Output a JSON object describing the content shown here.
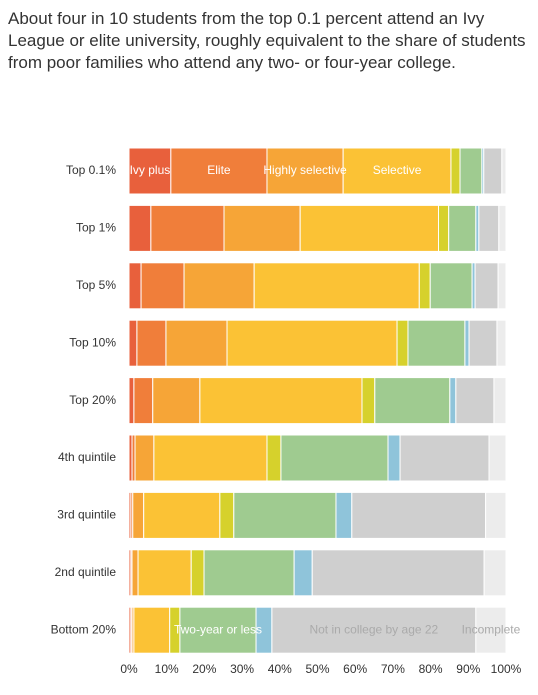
{
  "chart_data": {
    "type": "stacked_bar_horizontal",
    "title": "About four in 10 students from the top 0.1 percent attend an Ivy League or elite university, roughly equivalent to the share of students from poor families who attend any two- or four-year college.",
    "categories": [
      "Top 0.1%",
      "Top 1%",
      "Top 5%",
      "Top 10%",
      "Top 20%",
      "4th quintile",
      "3rd quintile",
      "2nd quintile",
      "Bottom 20%"
    ],
    "series": [
      {
        "name": "Ivy plus",
        "color": "#e8603c",
        "values": [
          11.1,
          5.8,
          3.2,
          2.1,
          1.3,
          0.8,
          0.5,
          0.5,
          0.5
        ]
      },
      {
        "name": "Elite",
        "color": "#f07e3a",
        "values": [
          25.5,
          19.4,
          11.4,
          7.7,
          5.0,
          0.8,
          0.5,
          0.3,
          0.3
        ]
      },
      {
        "name": "Highly selective",
        "color": "#f6a537",
        "values": [
          20.2,
          20.2,
          18.6,
          16.2,
          12.5,
          5.0,
          2.9,
          1.6,
          0.5
        ]
      },
      {
        "name": "Selective",
        "color": "#fbc235",
        "values": [
          28.6,
          36.7,
          43.8,
          45.1,
          43.0,
          30.0,
          20.2,
          14.1,
          9.5
        ]
      },
      {
        "name": null,
        "color": "#d6d12c",
        "values": [
          2.4,
          2.7,
          2.9,
          2.9,
          3.4,
          3.7,
          3.7,
          3.4,
          2.7
        ]
      },
      {
        "name": "Two-year or less",
        "color": "#9fcb90",
        "values": [
          5.8,
          7.2,
          11.1,
          15.1,
          19.9,
          28.4,
          27.1,
          23.9,
          20.2
        ]
      },
      {
        "name": null,
        "color": "#8fc4da",
        "values": [
          0.5,
          0.8,
          0.8,
          1.1,
          1.6,
          3.2,
          4.2,
          4.8,
          4.2
        ]
      },
      {
        "name": "Not in college by age 22",
        "color": "#cfcfcf",
        "values": [
          4.8,
          5.3,
          6.1,
          7.4,
          10.1,
          23.6,
          35.5,
          45.6,
          54.1
        ]
      },
      {
        "name": "Incomplete",
        "color": "#ececec",
        "values": [
          1.1,
          1.9,
          2.1,
          2.4,
          3.2,
          4.5,
          5.4,
          5.8,
          8.0
        ]
      }
    ],
    "xlim": [
      0,
      100
    ],
    "xticks": [
      {
        "value": 0,
        "label": "0%"
      },
      {
        "value": 10,
        "label": "10%"
      },
      {
        "value": 20,
        "label": "20%"
      },
      {
        "value": 30,
        "label": "30%"
      },
      {
        "value": 40,
        "label": "40%"
      },
      {
        "value": 50,
        "label": "50%"
      },
      {
        "value": 60,
        "label": "60%"
      },
      {
        "value": 70,
        "label": "70%"
      },
      {
        "value": 80,
        "label": "80%"
      },
      {
        "value": 90,
        "label": "90%"
      },
      {
        "value": 100,
        "label": "100%"
      }
    ]
  }
}
